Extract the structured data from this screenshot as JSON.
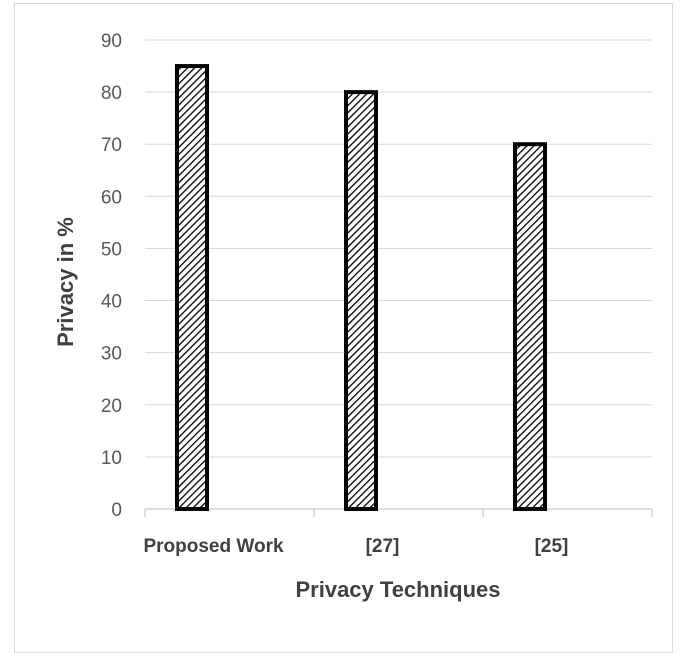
{
  "chart_data": {
    "type": "bar",
    "title": "",
    "xlabel": "Privacy Techniques",
    "ylabel": "Privacy in %",
    "categories": [
      "Proposed Work",
      "[27]",
      "[25]"
    ],
    "values": [
      85,
      80,
      70
    ],
    "ylim": [
      0,
      90
    ],
    "yticks": [
      0,
      10,
      20,
      30,
      40,
      50,
      60,
      70,
      80,
      90
    ],
    "grid": true,
    "legend": "none",
    "colors": {
      "bar_fill": "#ffffff",
      "bar_hatch": "#000000",
      "bar_outline": "#000000",
      "gridline": "#d9d9d9",
      "axis": "#bfbfbf"
    }
  }
}
